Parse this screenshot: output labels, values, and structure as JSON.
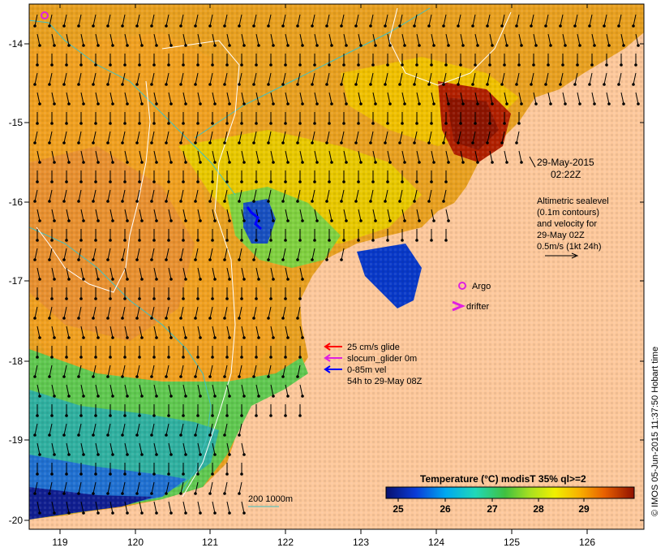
{
  "map": {
    "x_ticks": [
      "119",
      "120",
      "121",
      "122",
      "123",
      "124",
      "125",
      "126"
    ],
    "y_ticks": [
      "-14",
      "-15",
      "-16",
      "-17",
      "-18",
      "-19",
      "-20"
    ],
    "datetime_line1": "29-May-2015",
    "datetime_line2": "02:22Z",
    "altimetry": {
      "line1": "Altimetric sealevel",
      "line2": "(0.1m contours)",
      "line3": "and velocity for",
      "line4": "29-May 02Z",
      "line5": "0.5m/s (1kt 24h)"
    },
    "legend": {
      "argo": "Argo",
      "drifter": "drifter",
      "glide": "25 cm/s glide",
      "slocum": "slocum_glider 0m",
      "vel": "0-85m vel",
      "vel_period": "54h to 29-May 08Z",
      "depth_contours": "200  1000m"
    },
    "colorbar": {
      "title": "Temperature (°C) modisT 35% ql>=2",
      "ticks": [
        "25",
        "26",
        "27",
        "28",
        "29"
      ]
    },
    "credit": "© IMOS 05-Jun-2015 11:37:50 Hobart time",
    "colors": {
      "land": "#fdc89b",
      "argo": "#e020e0",
      "drifter": "#e020e0",
      "glide": "#ff0000",
      "slocum": "#e020e0",
      "vel": "#0000ff",
      "isobath": "#40c0c0",
      "sealevel_contour": "#ffffff"
    }
  }
}
